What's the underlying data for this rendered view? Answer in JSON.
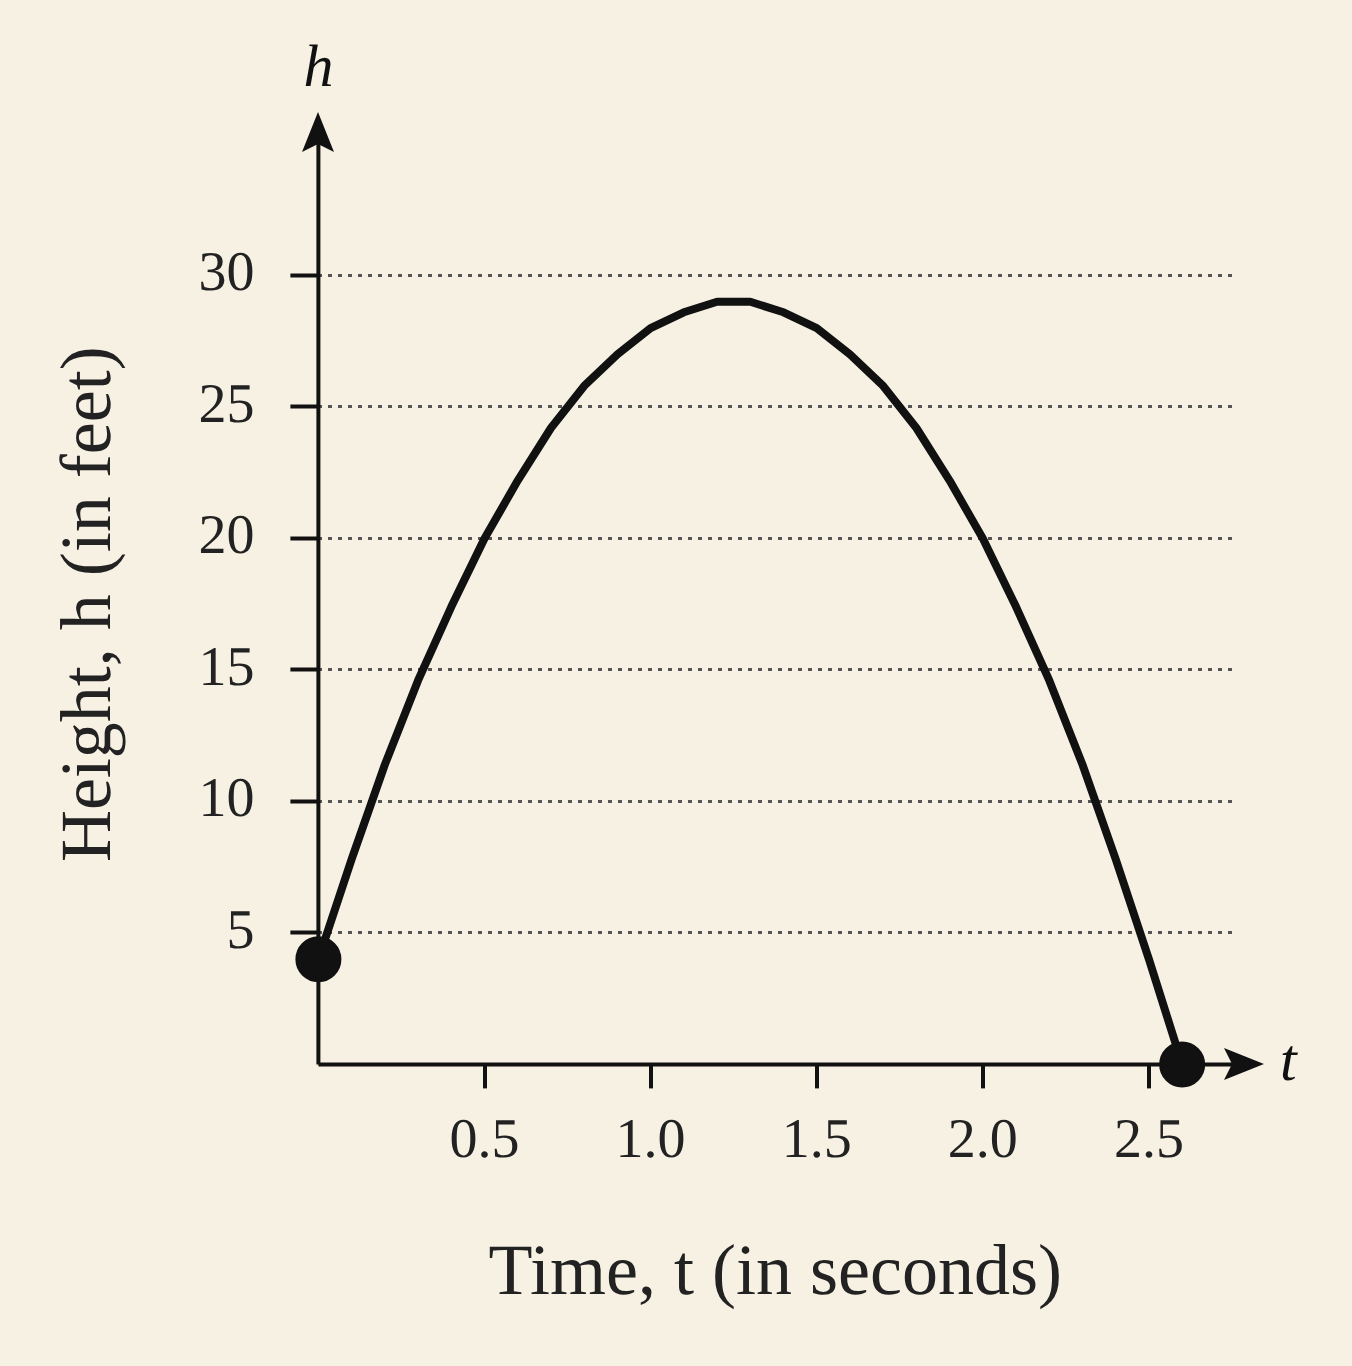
{
  "chart_data": {
    "type": "line",
    "xlabel": "Time, t (in seconds)",
    "ylabel": "Height, h (in feet)",
    "annotations": [
      "h",
      "t"
    ],
    "xlim": [
      0,
      2.75
    ],
    "xticks": [
      0.5,
      {
        "value": 1,
        "label": "1.0"
      },
      1.5,
      {
        "value": 2,
        "label": "2.0"
      },
      2.5
    ],
    "ylim": [
      0,
      35
    ],
    "yticks": [
      5,
      10,
      15,
      20,
      25,
      30
    ],
    "grid": "y",
    "line_style": "solid",
    "legend": false,
    "series": [
      {
        "color": "#111111",
        "marker": "none",
        "x": [
          0,
          0.1,
          0.2,
          0.3,
          0.4,
          0.5,
          0.6,
          0.7,
          0.8,
          0.9,
          1.0,
          1.1,
          1.2,
          1.25,
          1.3,
          1.4,
          1.5,
          1.6,
          1.7,
          1.8,
          1.9,
          2.0,
          2.1,
          2.2,
          2.3,
          2.4,
          2.5,
          2.6
        ],
        "values": [
          4,
          7.8,
          11.4,
          14.6,
          17.4,
          20,
          22.2,
          24.2,
          25.8,
          27,
          28,
          28.6,
          29,
          29,
          29,
          28.6,
          28,
          27,
          25.8,
          24.2,
          22.2,
          20,
          17.4,
          14.6,
          11.4,
          7.8,
          4,
          0
        ]
      },
      {
        "type": "scatter",
        "color": "#111111",
        "marker": "circle",
        "x": [
          0,
          2.6
        ],
        "values": [
          4,
          0
        ]
      }
    ]
  }
}
